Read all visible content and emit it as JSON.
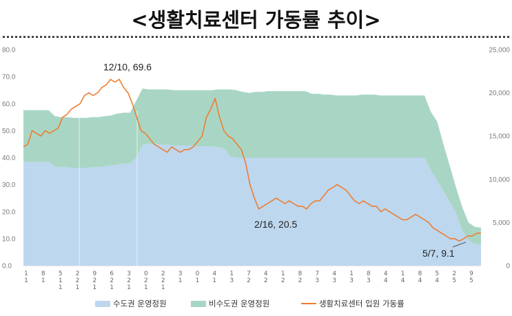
{
  "title": "<생활치료센터 가동률 추이>",
  "chart_data": {
    "type": "area",
    "y_left": {
      "min": 0,
      "max": 80,
      "ticks": [
        "80.0",
        "70.0",
        "60.0",
        "50.0",
        "40.0",
        "30.0",
        "20.0",
        "10.0",
        "0.0"
      ]
    },
    "y_right": {
      "min": 0,
      "max": 25000,
      "ticks": [
        "25,000",
        "20,000",
        "15,000",
        "10,000",
        "5,000",
        "0"
      ]
    },
    "x_tick_labels": [
      [
        "1",
        "1"
      ],
      [
        "8",
        "1"
      ],
      [
        "5",
        "1",
        "1"
      ],
      [
        "2",
        "2",
        "1"
      ],
      [
        "9",
        "2",
        "1"
      ],
      [
        "6",
        "2",
        "1"
      ],
      [
        "3",
        "2",
        "1"
      ],
      [
        "0",
        "2",
        "1"
      ],
      [
        "2",
        "2",
        "1"
      ],
      [
        "3",
        "1"
      ],
      [
        "0",
        "1"
      ],
      [
        "4",
        "1"
      ],
      [
        "1",
        "3"
      ],
      [
        "7",
        "2"
      ],
      [
        "4",
        "2"
      ],
      [
        "1",
        "2"
      ],
      [
        "8",
        "2"
      ],
      [
        "7",
        "3"
      ],
      [
        "4",
        "3"
      ],
      [
        "1",
        "3"
      ],
      [
        "8",
        "3"
      ],
      [
        "4",
        "4"
      ],
      [
        "1",
        "4"
      ],
      [
        "8",
        "4"
      ],
      [
        "5",
        "4"
      ],
      [
        "2",
        "5"
      ],
      [
        "9",
        "5"
      ]
    ],
    "series": [
      {
        "name": "수도권 운영정원",
        "color": "#BDD7EE",
        "axis": "right",
        "values": [
          12000,
          12000,
          12000,
          12000,
          12000,
          11500,
          11400,
          11400,
          11300,
          11300,
          11300,
          11400,
          11400,
          11500,
          11600,
          11700,
          11800,
          11800,
          12500,
          14000,
          14100,
          14100,
          14000,
          14000,
          13900,
          13900,
          13900,
          13900,
          13800,
          13800,
          13800,
          13700,
          13600,
          12600,
          12500,
          12500,
          12500,
          12500,
          12500,
          12500,
          12500,
          12500,
          12500,
          12500,
          12500,
          12500,
          12500,
          12500,
          12500,
          12500,
          12500,
          12500,
          12500,
          12500,
          12500,
          12500,
          12500,
          12500,
          12500,
          12500,
          12500,
          12500,
          12500,
          12500,
          12500,
          11000,
          9900,
          8600,
          7400,
          6100,
          4100,
          2900,
          2500,
          2450
        ]
      },
      {
        "name": "비수도권 운영정원",
        "color": "#A9D6C4",
        "axis": "right",
        "values": [
          6000,
          6000,
          6000,
          6000,
          6000,
          5800,
          5800,
          5800,
          5800,
          5800,
          5800,
          5800,
          5800,
          5800,
          5800,
          5900,
          5900,
          5900,
          6600,
          6500,
          6300,
          6300,
          6400,
          6400,
          6400,
          6400,
          6400,
          6400,
          6500,
          6500,
          6500,
          6700,
          6800,
          7800,
          7800,
          7600,
          7500,
          7600,
          7600,
          7700,
          7700,
          7700,
          7700,
          7700,
          7700,
          7700,
          7400,
          7400,
          7300,
          7300,
          7200,
          7200,
          7200,
          7200,
          7300,
          7300,
          7300,
          7200,
          7200,
          7200,
          7200,
          7200,
          7200,
          7200,
          7200,
          6800,
          6800,
          5500,
          4200,
          3000,
          2700,
          2100,
          2000,
          1950
        ]
      },
      {
        "name": "생활치료센터 입원 가동률",
        "color": "#ED7D31",
        "axis": "left",
        "values": [
          44,
          45,
          50,
          49,
          48,
          50,
          49,
          50,
          51,
          55,
          56,
          58,
          59,
          60,
          63,
          64,
          63,
          64,
          66,
          67,
          69,
          68,
          69,
          66,
          64,
          60,
          55,
          50,
          49,
          47,
          45,
          44,
          43,
          42,
          44,
          43,
          42,
          43,
          43,
          44,
          46,
          48,
          55,
          58,
          62,
          55,
          50,
          48,
          47,
          45,
          43,
          38,
          30,
          25,
          21,
          22,
          23,
          24,
          25,
          24,
          23,
          24,
          23,
          22,
          22,
          21,
          23,
          24,
          24,
          26,
          28,
          29,
          30,
          29,
          28,
          26,
          24,
          23,
          24,
          23,
          22,
          22,
          20,
          21,
          20,
          19,
          18,
          17,
          17,
          18,
          19,
          18,
          17,
          16,
          14,
          13,
          12,
          11,
          10,
          10,
          9.1,
          10,
          11,
          11,
          12,
          12
        ]
      }
    ],
    "annotations": [
      "12/10, 69.6",
      "2/16, 20.5",
      "5/7, 9.1"
    ]
  }
}
